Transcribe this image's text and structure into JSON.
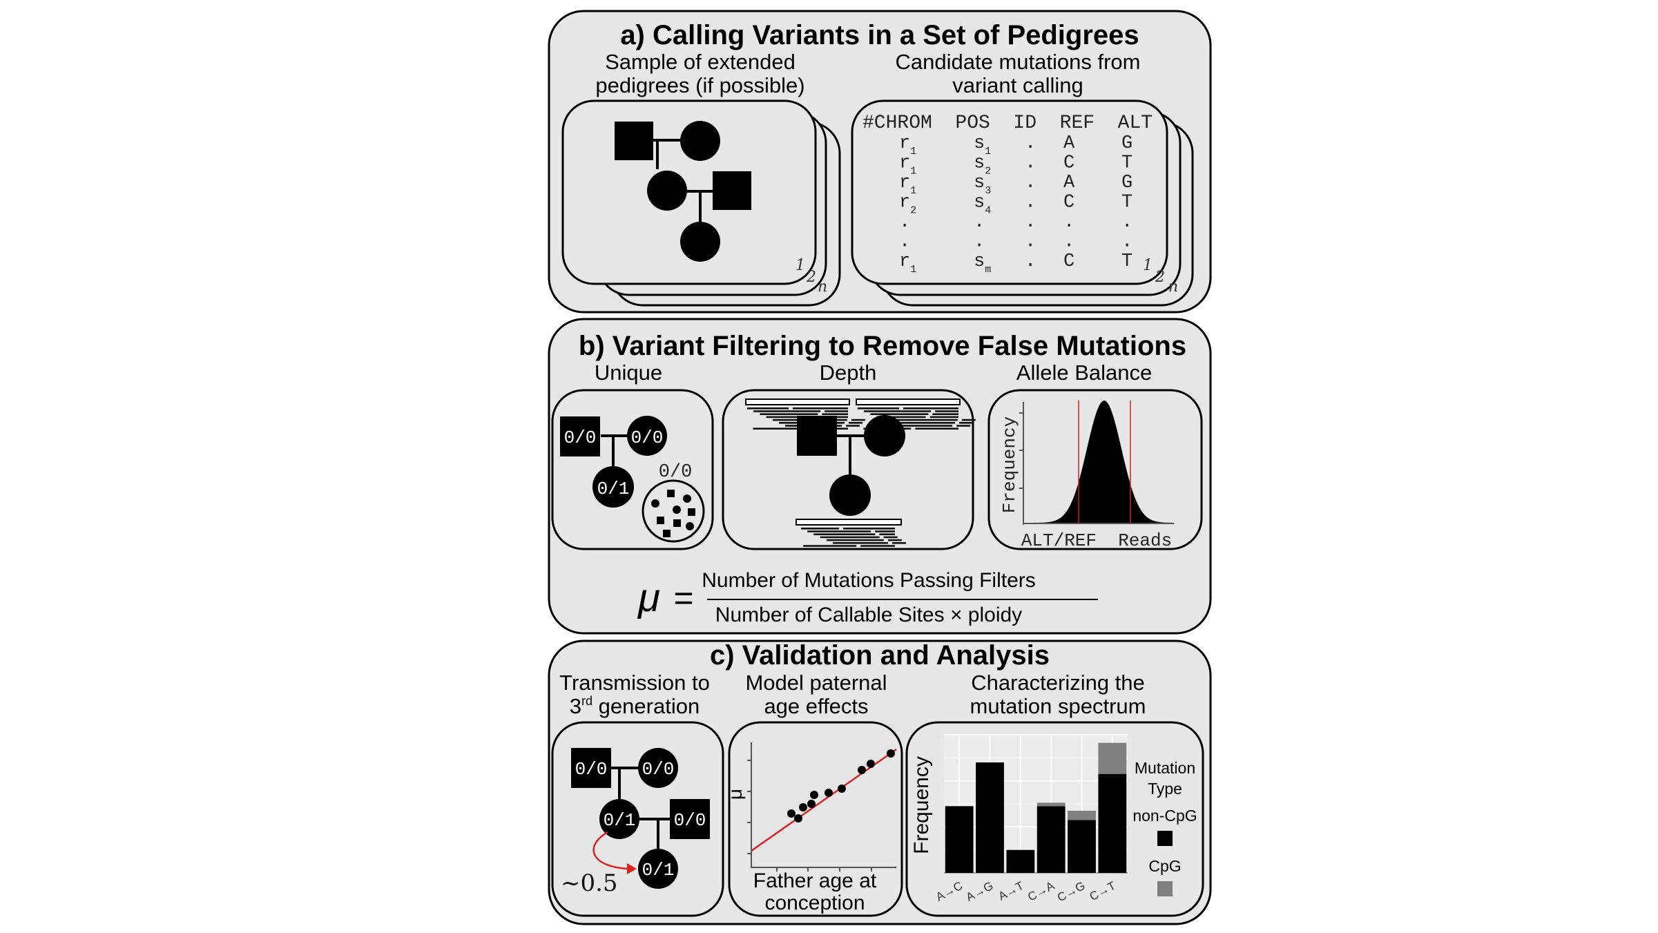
{
  "panel_a": {
    "title": "a) Calling Variants in a Set of Pedigrees",
    "left_caption": [
      "Sample of extended",
      "pedigrees (if possible)"
    ],
    "right_caption": [
      "Candidate mutations from",
      "variant calling"
    ],
    "stack_labels": [
      "1",
      "2",
      "n"
    ],
    "vcf": {
      "header": "#CHROM  POS  ID  REF  ALT",
      "rows": [
        {
          "chrom": "r",
          "chrom_sub": "1",
          "pos": "s",
          "pos_sub": "1",
          "id": ".",
          "ref": "A",
          "alt": "G"
        },
        {
          "chrom": "r",
          "chrom_sub": "1",
          "pos": "s",
          "pos_sub": "2",
          "id": ".",
          "ref": "C",
          "alt": "T"
        },
        {
          "chrom": "r",
          "chrom_sub": "1",
          "pos": "s",
          "pos_sub": "3",
          "id": ".",
          "ref": "A",
          "alt": "G"
        },
        {
          "chrom": "r",
          "chrom_sub": "2",
          "pos": "s",
          "pos_sub": "4",
          "id": ".",
          "ref": "C",
          "alt": "T"
        },
        {
          "chrom": ".",
          "chrom_sub": "",
          "pos": ".",
          "pos_sub": "",
          "id": ".",
          "ref": ".",
          "alt": "."
        },
        {
          "chrom": ".",
          "chrom_sub": "",
          "pos": ".",
          "pos_sub": "",
          "id": ".",
          "ref": ".",
          "alt": "."
        },
        {
          "chrom": "r",
          "chrom_sub": "1",
          "pos": "s",
          "pos_sub": "m",
          "id": ".",
          "ref": "C",
          "alt": "T"
        }
      ]
    }
  },
  "panel_b": {
    "title": "b) Variant Filtering to Remove False Mutations",
    "unique": {
      "label": "Unique",
      "father_gt": "0/0",
      "mother_gt": "0/0",
      "child_gt": "0/1",
      "population_gt": "0/0"
    },
    "depth": {
      "label": "Depth"
    },
    "allele_balance": {
      "label": "Allele Balance",
      "ylabel": "Frequency",
      "xlabel": "ALT/REF  Reads",
      "accent": "#cc2222"
    },
    "formula": {
      "symbol": "μ",
      "equals": "=",
      "numerator": "Number of Mutations Passing Filters",
      "denominator": "Number of Callable Sites × ploidy"
    }
  },
  "panel_c": {
    "title": "c) Validation and Analysis",
    "transmission": {
      "title_line1_prefix": "Transmission to",
      "title_line2_num": "3",
      "title_line2_sup": "rd",
      "title_line2_rest": " generation",
      "gp_father_gt": "0/0",
      "gp_mother_gt": "0/0",
      "parent_gt": "0/1",
      "spouse_gt": "0/0",
      "grandchild_gt": "0/1",
      "probability": "~0.5",
      "accent": "#dd2222"
    },
    "age": {
      "title": [
        "Model paternal",
        "age effects"
      ],
      "ylabel": "μ",
      "xlabel": [
        "Father age at",
        "conception"
      ],
      "accent": "#dd2222"
    },
    "spectrum": {
      "title": [
        "Characterizing the",
        "mutation spectrum"
      ],
      "legend_title": [
        "Mutation",
        "Type"
      ],
      "legend_items": [
        {
          "label": "non-CpG",
          "color": "#000000"
        },
        {
          "label": "CpG",
          "color": "#7f7f7f"
        }
      ]
    }
  },
  "chart_data": {
    "type": "bar",
    "stacked": true,
    "categories": [
      "A→C",
      "A→G",
      "A→T",
      "C→A",
      "C→G",
      "C→T"
    ],
    "series": [
      {
        "name": "non-CpG",
        "values": [
          2.9,
          4.8,
          1.0,
          2.9,
          2.3,
          4.3
        ]
      },
      {
        "name": "CpG",
        "values": [
          0.0,
          0.0,
          0.0,
          0.15,
          0.4,
          1.35
        ]
      }
    ],
    "ylabel": "Frequency",
    "xlabel": "",
    "ylim": [
      0,
      6
    ],
    "grid": true,
    "legend": "right"
  }
}
